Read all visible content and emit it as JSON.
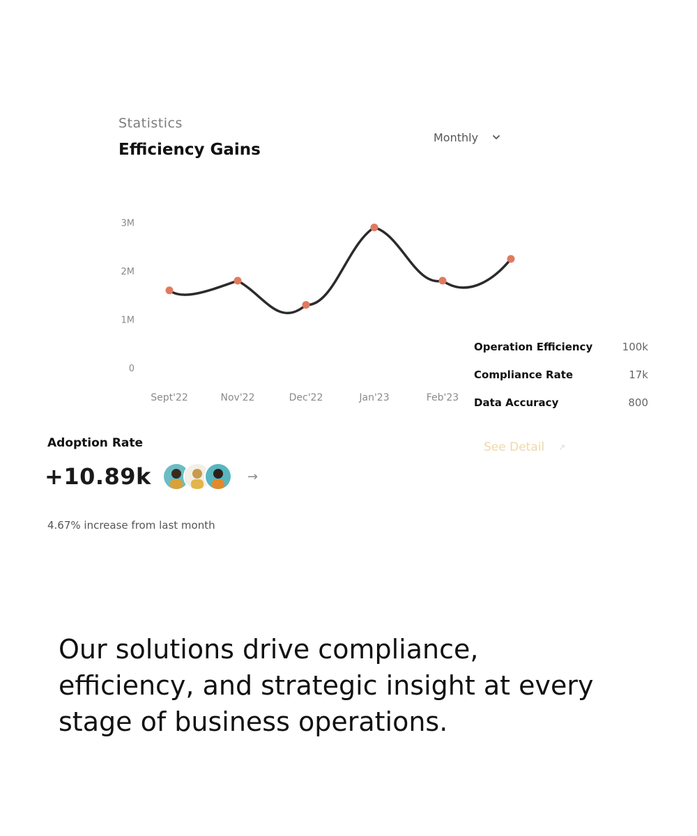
{
  "header": {
    "eyebrow": "Statistics",
    "title": "Efficiency Gains",
    "period_select": "Monthly"
  },
  "chart_data": {
    "type": "line",
    "x": [
      "Sept'22",
      "Nov'22",
      "Dec'22",
      "Jan'23",
      "Feb'23",
      ""
    ],
    "values": [
      1.6,
      1.8,
      1.3,
      2.9,
      1.8,
      2.25
    ],
    "y_ticks": [
      "0",
      "1M",
      "2M",
      "3M"
    ],
    "ylim": [
      0,
      3
    ],
    "grid": false,
    "line_color": "#2b2b2b",
    "point_color": "#e07a5f"
  },
  "metrics": [
    {
      "label": "Operation Efficiency",
      "value": "100k"
    },
    {
      "label": "Compliance Rate",
      "value": "17k"
    },
    {
      "label": "Data Accuracy",
      "value": "800"
    }
  ],
  "see_detail": {
    "label": "See Detail",
    "arrow": "↗"
  },
  "adoption": {
    "label": "Adoption Rate",
    "value": "+10.89k",
    "arrow": "→",
    "increase_text": "4.67% increase from last month"
  },
  "tagline": "Our solutions drive compliance, efficiency, and strategic insight at every stage of business operations."
}
